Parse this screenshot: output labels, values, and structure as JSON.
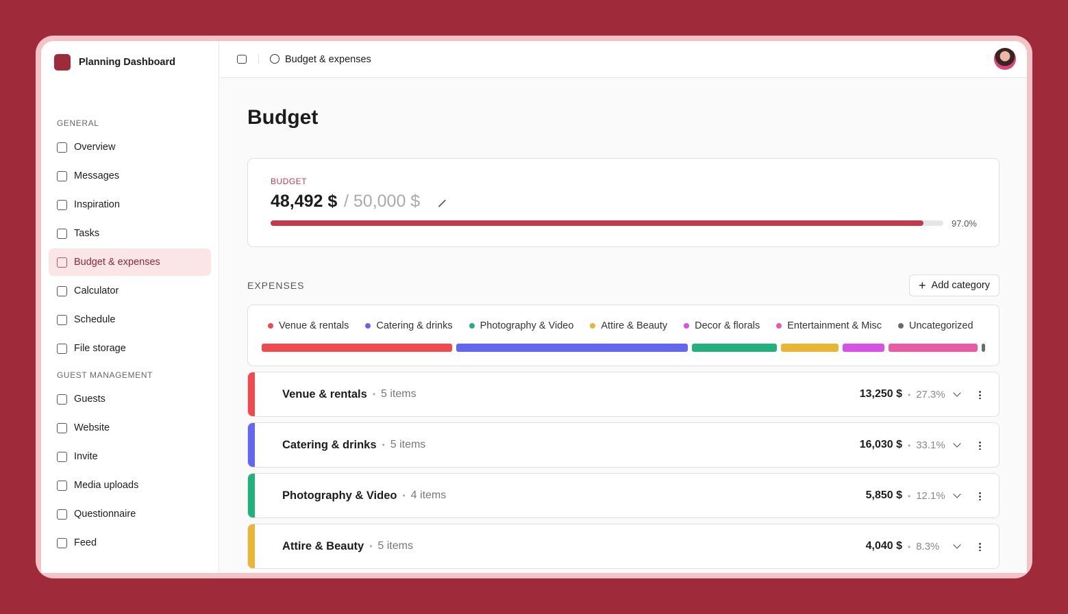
{
  "sidebar": {
    "app_name": "Planning Dashboard",
    "sections": [
      {
        "title": "GENERAL",
        "items": [
          "Overview",
          "Messages",
          "Inspiration",
          "Tasks",
          "Budget & expenses",
          "Calculator",
          "Schedule",
          "File storage"
        ]
      },
      {
        "title": "GUEST MANAGEMENT",
        "items": [
          "Guests",
          "Website",
          "Invite",
          "Media uploads",
          "Questionnaire",
          "Feed"
        ]
      }
    ],
    "active": "Budget & expenses"
  },
  "topbar": {
    "breadcrumb": "Budget & expenses"
  },
  "page_title": "Budget",
  "budget": {
    "label": "BUDGET",
    "spent": "48,492 $",
    "total": "/ 50,000 $",
    "progress": {
      "value": 97,
      "label": "97.0%"
    },
    "color": "#c23b4a"
  },
  "expenses": {
    "label": "EXPENSES",
    "button": "Add category",
    "legend": [
      {
        "name": "Venue & rentals",
        "color": "#ef4a4f",
        "share": 27.3
      },
      {
        "name": "Catering & drinks",
        "color": "#6366f1",
        "share": 33.1
      },
      {
        "name": "Photography & Video",
        "color": "#22b07d",
        "share": 12.1
      },
      {
        "name": "Attire & Beauty",
        "color": "#e8b534",
        "share": 8.3
      },
      {
        "name": "Decor & florals",
        "color": "#d651e6",
        "share": 6
      },
      {
        "name": "Entertainment & Misc",
        "color": "#e85aa3",
        "share": 12.7
      },
      {
        "name": "Uncategorized",
        "color": "#6b6b6b",
        "share": 0.5
      }
    ],
    "rows": [
      {
        "name": "Venue & rentals",
        "count": "5 items",
        "amount": "13,250 $",
        "share": "27.3%",
        "color": "#ef4a4f"
      },
      {
        "name": "Catering & drinks",
        "count": "5 items",
        "amount": "16,030 $",
        "share": "33.1%",
        "color": "#6366f1"
      },
      {
        "name": "Photography & Video",
        "count": "4 items",
        "amount": "5,850 $",
        "share": "12.1%",
        "color": "#22b07d"
      },
      {
        "name": "Attire & Beauty",
        "count": "5 items",
        "amount": "4,040 $",
        "share": "8.3%",
        "color": "#e8b534"
      }
    ]
  }
}
